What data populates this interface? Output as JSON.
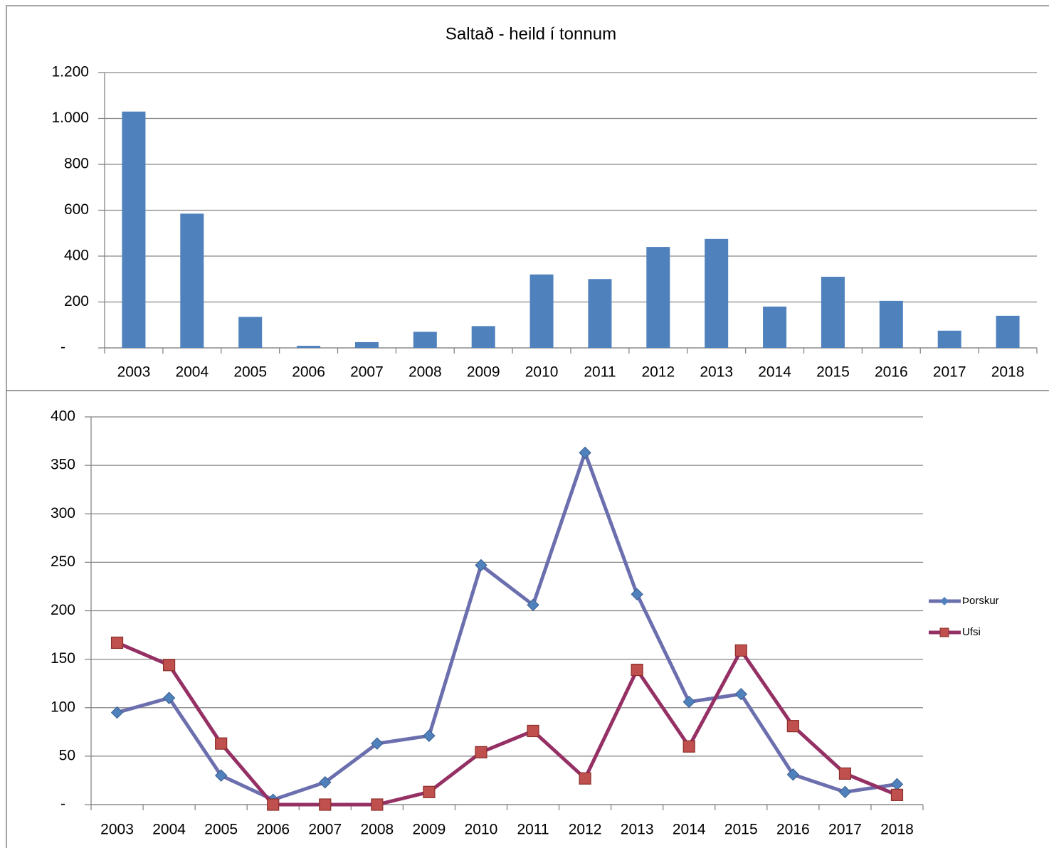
{
  "chart_data": [
    {
      "type": "bar",
      "title": "Saltað - heild í tonnum",
      "categories": [
        "2003",
        "2004",
        "2005",
        "2006",
        "2007",
        "2008",
        "2009",
        "2010",
        "2011",
        "2012",
        "2013",
        "2014",
        "2015",
        "2016",
        "2017",
        "2018"
      ],
      "values": [
        1030,
        585,
        135,
        9,
        25,
        70,
        95,
        320,
        300,
        440,
        475,
        180,
        310,
        205,
        75,
        140
      ],
      "color": "#4f81bd",
      "ylim": [
        0,
        1200
      ],
      "yticks": [
        {
          "value": 0,
          "label": "-"
        },
        200,
        400,
        600,
        800,
        {
          "value": 1000,
          "label": "1.000"
        },
        {
          "value": 1200,
          "label": "1.200"
        }
      ],
      "grid": true
    },
    {
      "type": "line",
      "categories": [
        "2003",
        "2004",
        "2005",
        "2006",
        "2007",
        "2008",
        "2009",
        "2010",
        "2011",
        "2012",
        "2013",
        "2014",
        "2015",
        "2016",
        "2017",
        "2018"
      ],
      "series": [
        {
          "name": "Þorskur",
          "color": "#6b6fae",
          "marker_color": "#4f81bd",
          "marker": "diamond",
          "values": [
            95,
            110,
            30,
            5,
            23,
            63,
            71,
            247,
            206,
            363,
            217,
            106,
            114,
            31,
            13,
            21
          ]
        },
        {
          "name": "Ufsi",
          "color": "#953065",
          "marker_color": "#c0504d",
          "marker": "square",
          "values": [
            167,
            144,
            63,
            0,
            0,
            0,
            13,
            54,
            76,
            27,
            139,
            60,
            159,
            81,
            32,
            10
          ]
        }
      ],
      "ylim": [
        0,
        400
      ],
      "yticks": [
        {
          "value": 0,
          "label": "-"
        },
        50,
        100,
        150,
        200,
        250,
        300,
        350,
        400
      ],
      "grid": true,
      "legend": "right"
    }
  ]
}
